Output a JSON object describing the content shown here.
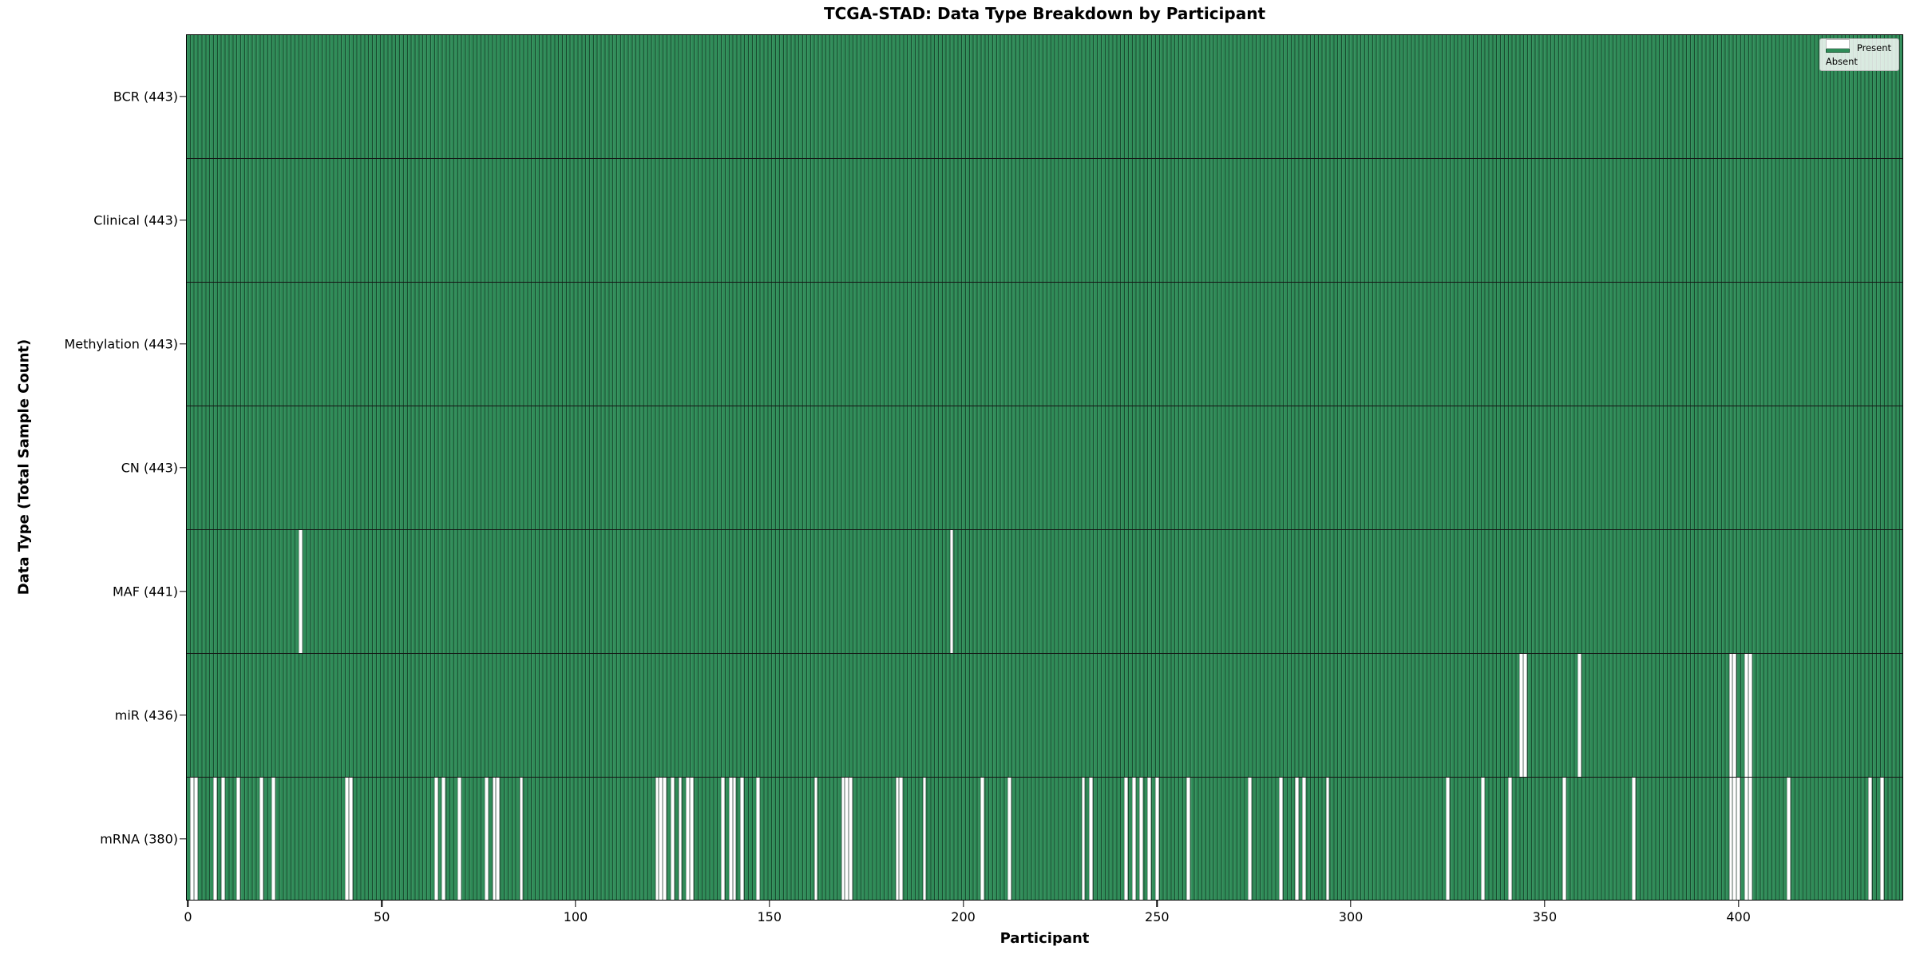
{
  "figure": {
    "background_color": "#ffffff",
    "text_color": "#000000"
  },
  "chart_data": {
    "type": "heatmap",
    "title": "TCGA-STAD: Data Type Breakdown by Participant",
    "xlabel": "Participant",
    "ylabel": "Data Type (Total Sample Count)",
    "grid": false,
    "n_participants": 443,
    "xlim": [
      0,
      443
    ],
    "x_ticks": [
      0,
      50,
      100,
      150,
      200,
      250,
      300,
      350,
      400
    ],
    "present_color": "#2e8b57",
    "absent_color": "#ffffff",
    "legend": {
      "position": "upper right",
      "entries": [
        {
          "label": "Present",
          "color": "#2e8b57"
        },
        {
          "label": "Absent",
          "color": "#ffffff"
        }
      ]
    },
    "rows": [
      {
        "key": "bcr",
        "label": "BCR (443)",
        "data_type": "BCR",
        "present_count": 443,
        "absent_participants": []
      },
      {
        "key": "clinical",
        "label": "Clinical (443)",
        "data_type": "Clinical",
        "present_count": 443,
        "absent_participants": []
      },
      {
        "key": "methylation",
        "label": "Methylation (443)",
        "data_type": "Methylation",
        "present_count": 443,
        "absent_participants": []
      },
      {
        "key": "cn",
        "label": "CN (443)",
        "data_type": "CN",
        "present_count": 443,
        "absent_participants": []
      },
      {
        "key": "maf",
        "label": "MAF (441)",
        "data_type": "MAF",
        "present_count": 441,
        "absent_participants": [
          29,
          197
        ]
      },
      {
        "key": "mir",
        "label": "miR (436)",
        "data_type": "miR",
        "present_count": 436,
        "absent_participants": [
          344,
          345,
          359,
          398,
          399,
          402,
          403
        ]
      },
      {
        "key": "mrna",
        "label": "mRNA (380)",
        "data_type": "mRNA",
        "present_count": 380,
        "absent_participants": [
          1,
          2,
          7,
          9,
          13,
          19,
          22,
          41,
          42,
          64,
          66,
          70,
          77,
          79,
          80,
          86,
          121,
          122,
          123,
          125,
          127,
          129,
          130,
          138,
          140,
          141,
          143,
          147,
          162,
          169,
          170,
          171,
          183,
          184,
          190,
          205,
          212,
          231,
          233,
          242,
          244,
          246,
          248,
          250,
          258,
          274,
          282,
          286,
          288,
          294,
          325,
          334,
          341,
          355,
          373,
          398,
          399,
          400,
          402,
          403,
          413,
          434,
          437
        ]
      }
    ]
  }
}
